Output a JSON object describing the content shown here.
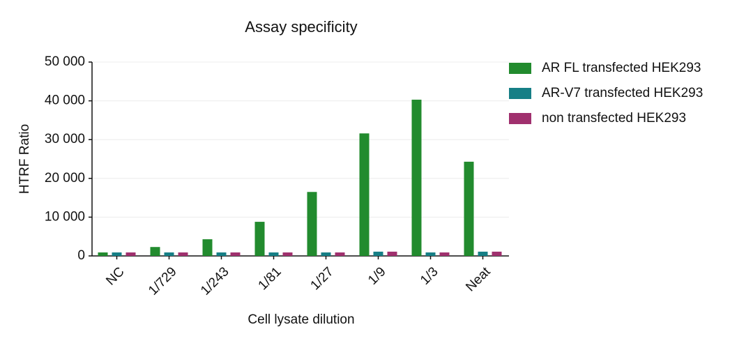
{
  "chart_data": {
    "type": "bar",
    "title": "Assay specificity",
    "x_label": "Cell lysate dilution",
    "y_label": "HTRF Ratio",
    "categories": [
      "NC",
      "1/729",
      "1/243",
      "1/81",
      "1/27",
      "1/9",
      "1/3",
      "Neat"
    ],
    "series": [
      {
        "name": "AR FL transfected HEK293",
        "color": "#228b2e",
        "values": [
          900,
          2300,
          4300,
          8800,
          16500,
          31600,
          40300,
          24300
        ]
      },
      {
        "name": "AR-V7 transfected HEK293",
        "color": "#167f86",
        "values": [
          900,
          900,
          900,
          900,
          900,
          1100,
          900,
          1100
        ]
      },
      {
        "name": "non transfected HEK293",
        "color": "#a0306e",
        "values": [
          900,
          900,
          900,
          900,
          900,
          1100,
          900,
          1100
        ]
      }
    ],
    "ylim": [
      0,
      50000
    ],
    "yticks": [
      0,
      {
        "value": 10000,
        "label": "10 000"
      },
      {
        "value": 20000,
        "label": "20 000"
      },
      {
        "value": 30000,
        "label": "30 000"
      },
      {
        "value": 40000,
        "label": "40 000"
      },
      {
        "value": 50000,
        "label": "50 000"
      }
    ],
    "grid": true,
    "legend": "right"
  }
}
